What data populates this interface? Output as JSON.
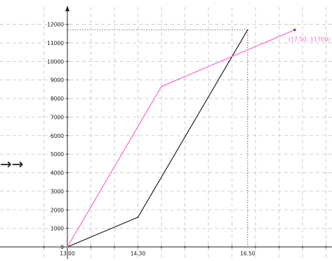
{
  "chart_data": {
    "type": "line",
    "title": "",
    "xlabel": "",
    "ylabel": "",
    "grid": true,
    "xlim": [
      12.5,
      18.8
    ],
    "ylim": [
      -150,
      12800
    ],
    "x_ticks": [
      {
        "value": 13.0,
        "label": "13.00"
      },
      {
        "value": 14.5,
        "label": "14.30"
      },
      {
        "value": 16.833,
        "label": "16.50"
      }
    ],
    "y_ticks": [
      0,
      1000,
      2000,
      3000,
      4000,
      5000,
      6000,
      7000,
      8000,
      9000,
      10000,
      11000,
      12000
    ],
    "series": [
      {
        "color": "#222222",
        "points": [
          {
            "x": 13.0,
            "y": 0
          },
          {
            "x": 14.5,
            "y": 1600
          },
          {
            "x": 16.833,
            "y": 11700
          }
        ]
      },
      {
        "color": "#ff66cc",
        "points": [
          {
            "x": 13.0,
            "y": 0
          },
          {
            "x": 15.0,
            "y": 8650
          },
          {
            "x": 17.833,
            "y": 11700
          }
        ]
      }
    ],
    "annotations": [
      {
        "text": "(17.50, 11700)",
        "x": 17.833,
        "y": 11700,
        "color": "#ff66cc"
      }
    ],
    "guides": {
      "x": 16.833,
      "y": 11700
    }
  },
  "decorations": {
    "left_arrows": "→→"
  }
}
